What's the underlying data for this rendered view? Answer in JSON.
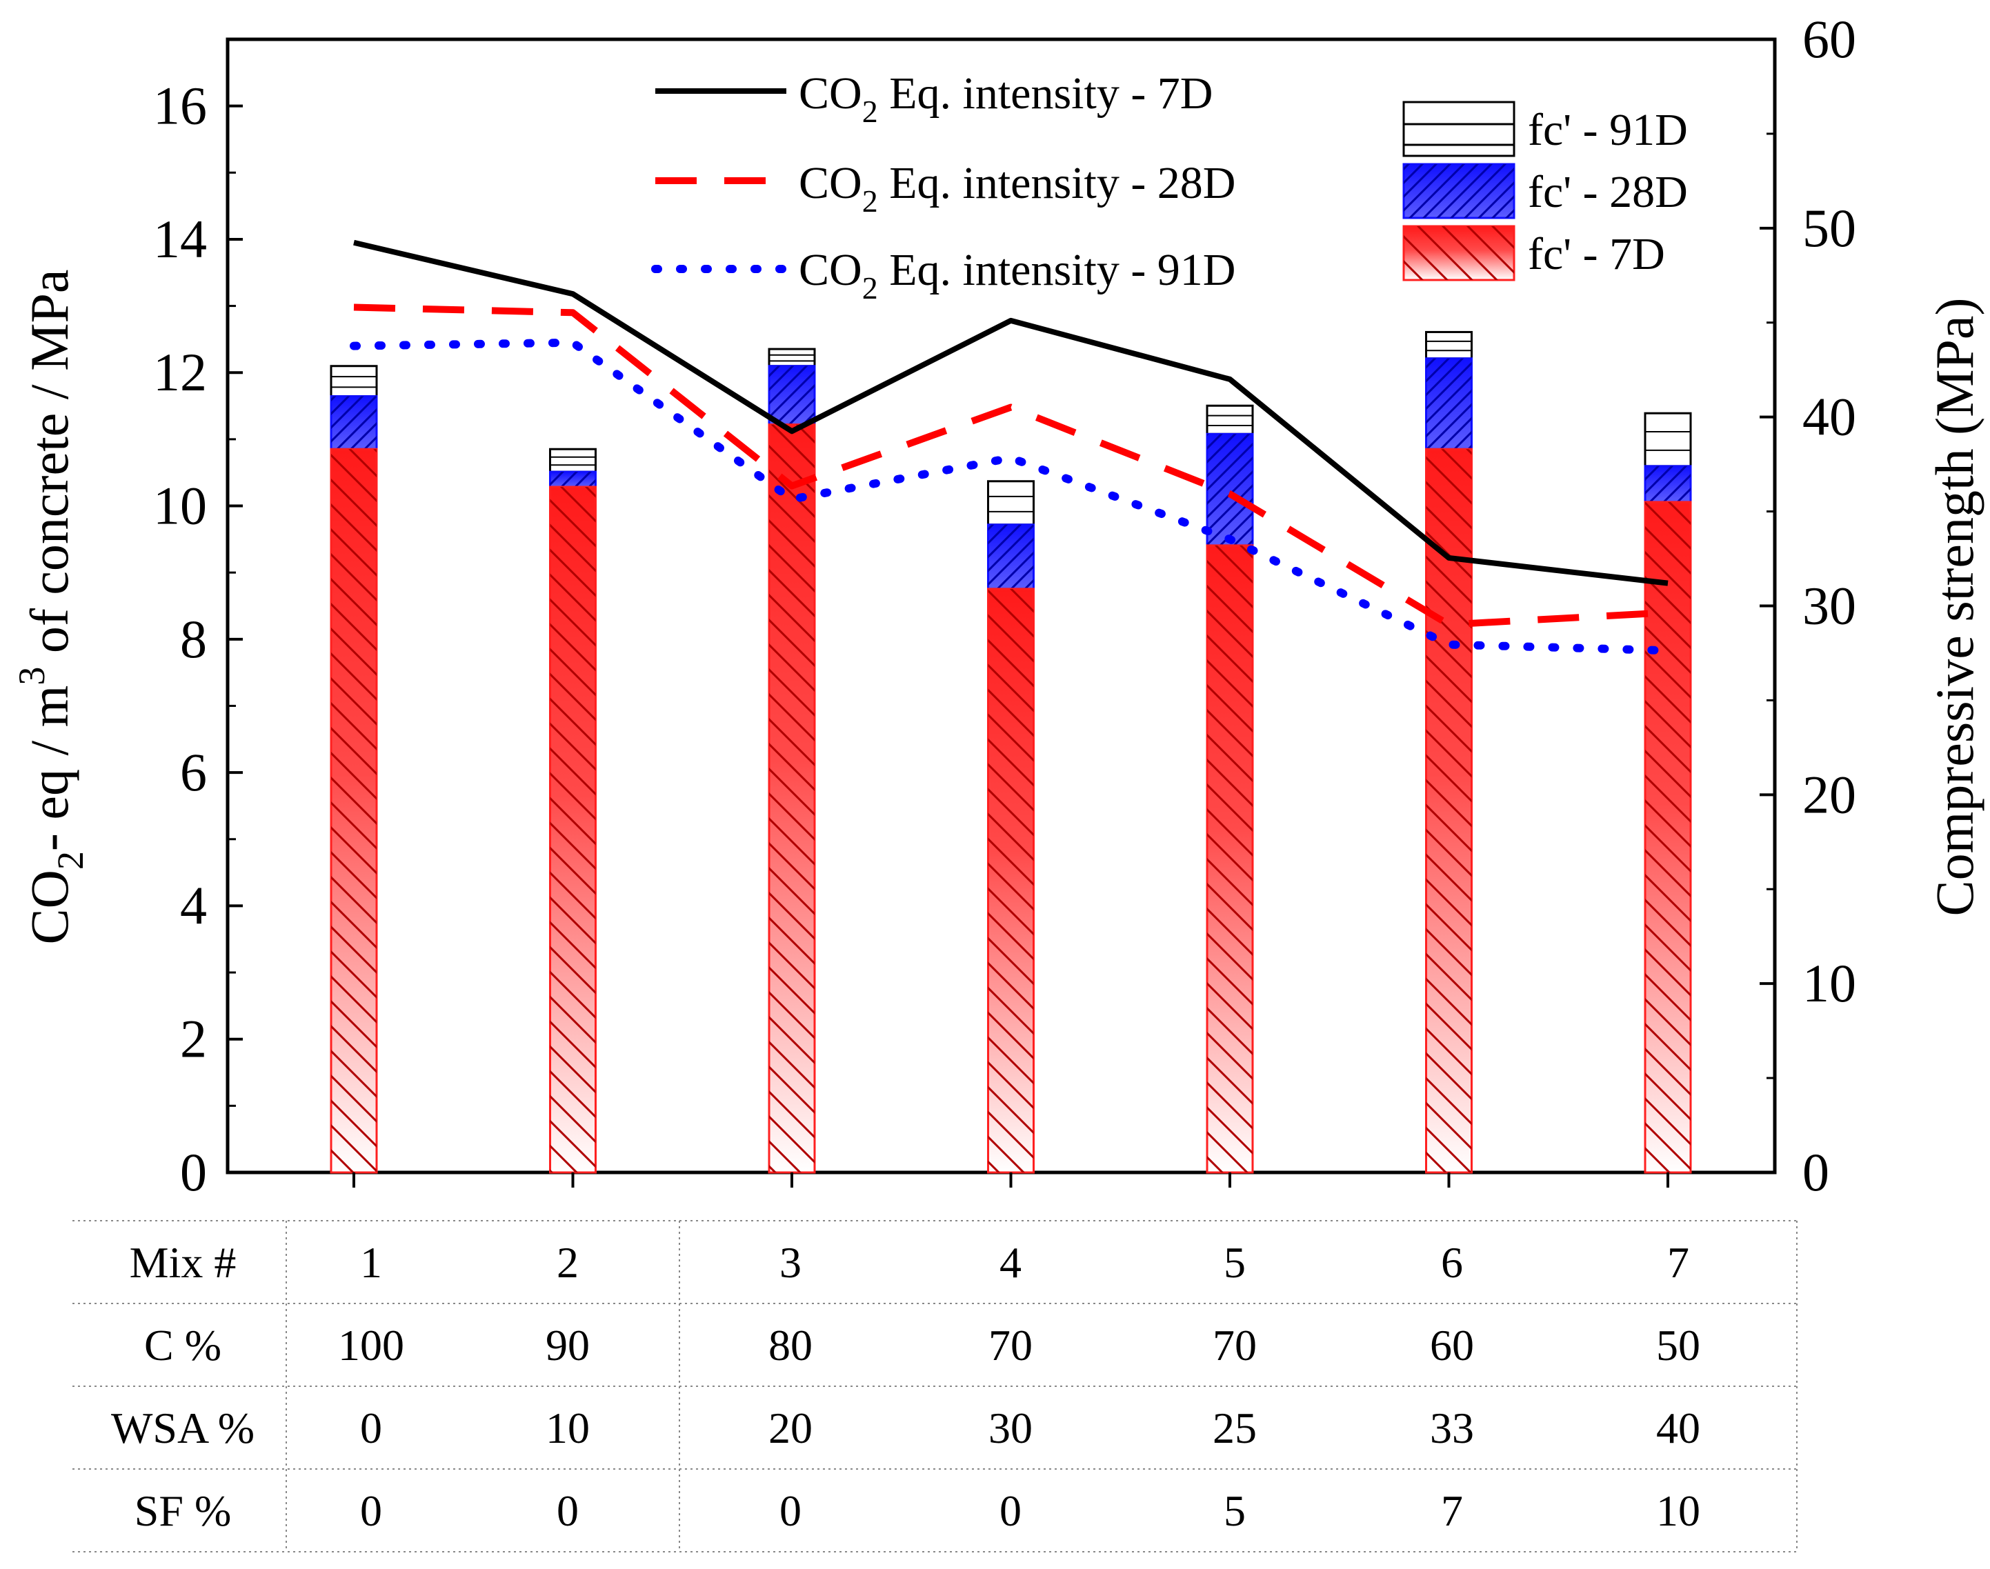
{
  "chart_data": {
    "type": "bar+line",
    "xlabel": "",
    "ylabel_left": "CO₂- eq / m³ of concrete / MPa",
    "ylabel_left_parts": {
      "co": "CO",
      "sub2": "2",
      "mid": "- eq / m",
      "sup3": "3",
      "rest": " of concrete / MPa"
    },
    "ylabel_right": "Compressive strength (MPa)",
    "categories": [
      "1",
      "2",
      "3",
      "4",
      "5",
      "6",
      "7"
    ],
    "ylim_left": [
      0,
      17
    ],
    "ylim_right": [
      0,
      60
    ],
    "yticks_left": [
      "0",
      "2",
      "4",
      "6",
      "8",
      "10",
      "12",
      "14",
      "16"
    ],
    "yticks_right": [
      "0",
      "10",
      "20",
      "30",
      "40",
      "50",
      "60"
    ],
    "bars": [
      {
        "name": "fc' - 7D",
        "axis": "right",
        "color": "#ff2020",
        "values": [
          38.3,
          36.3,
          39.6,
          30.9,
          33.2,
          38.3,
          35.5
        ]
      },
      {
        "name": "fc' - 28D",
        "axis": "right",
        "color": "#1a1aff",
        "values": [
          41.1,
          37.1,
          42.7,
          34.3,
          39.1,
          43.1,
          37.4
        ]
      },
      {
        "name": "fc' - 91D",
        "axis": "right",
        "color": "#ffffff",
        "values": [
          42.7,
          38.3,
          43.6,
          36.6,
          40.6,
          44.5,
          40.2
        ]
      }
    ],
    "series": [
      {
        "name": "CO2 Eq. intensity - 7D",
        "axis": "left",
        "color": "#000000",
        "style": "solid",
        "values": [
          13.95,
          13.18,
          11.12,
          12.78,
          11.9,
          9.22,
          8.84
        ]
      },
      {
        "name": "CO2 Eq. intensity - 28D",
        "axis": "left",
        "color": "#ff0000",
        "style": "dashed",
        "values": [
          12.98,
          12.9,
          10.3,
          11.48,
          10.18,
          8.22,
          8.4
        ]
      },
      {
        "name": "CO2 Eq. intensity - 91D",
        "axis": "left",
        "color": "#0000ff",
        "style": "dotted",
        "values": [
          12.4,
          12.45,
          10.1,
          10.72,
          9.5,
          7.92,
          7.83
        ]
      }
    ],
    "legend_lines": [
      {
        "prefix": "CO",
        "sub": "2",
        "suffix": " Eq. intensity - 7D"
      },
      {
        "prefix": "CO",
        "sub": "2",
        "suffix": " Eq. intensity - 28D"
      },
      {
        "prefix": "CO",
        "sub": "2",
        "suffix": " Eq. intensity - 91D"
      }
    ],
    "legend_bars": [
      "fc' - 91D",
      "fc' - 28D",
      "fc' - 7D"
    ],
    "table": {
      "headers": [
        "Mix #",
        "C %",
        "WSA %",
        "SF %"
      ],
      "rows": [
        [
          "1",
          "2",
          "3",
          "4",
          "5",
          "6",
          "7"
        ],
        [
          "100",
          "90",
          "80",
          "70",
          "70",
          "60",
          "50"
        ],
        [
          "0",
          "10",
          "20",
          "30",
          "25",
          "33",
          "40"
        ],
        [
          "0",
          "0",
          "0",
          "0",
          "5",
          "7",
          "10"
        ]
      ]
    }
  }
}
